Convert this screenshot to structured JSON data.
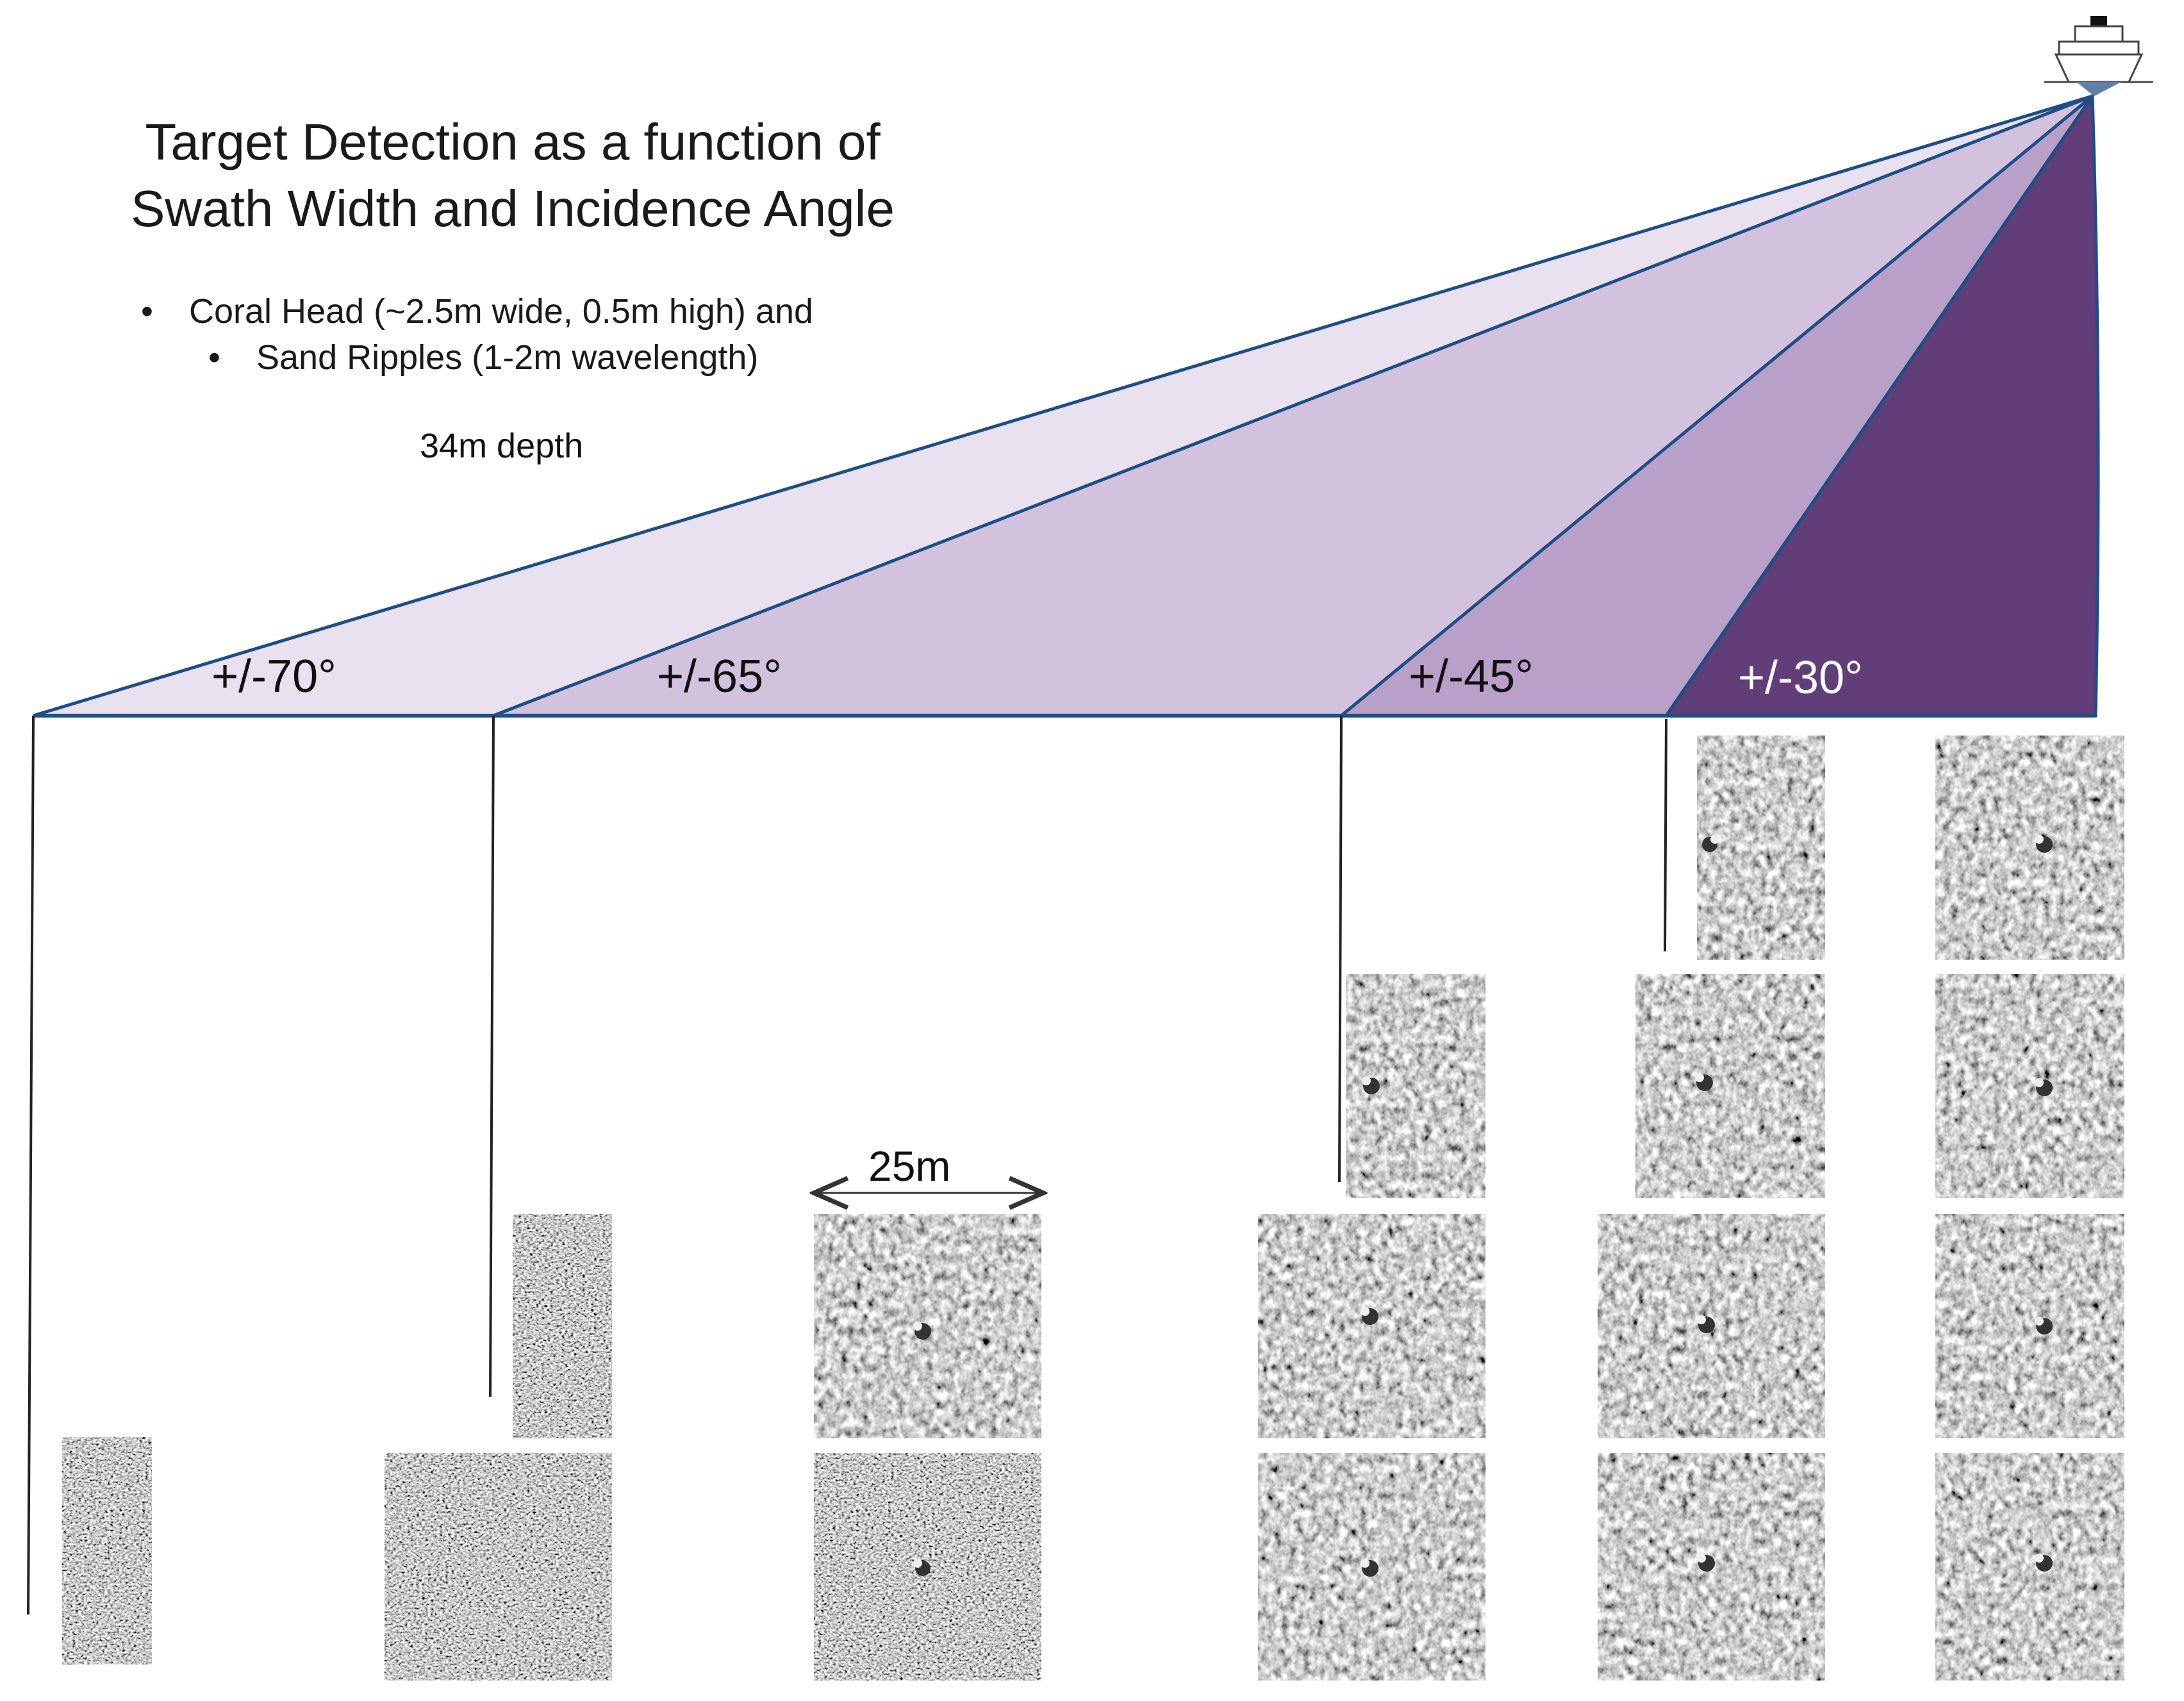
{
  "title": {
    "line1": "Target Detection as a function of",
    "line2": "Swath Width and Incidence Angle"
  },
  "bullets": [
    "Coral Head (~2.5m wide, 0.5m high) and",
    "Sand Ripples (1-2m wavelength)"
  ],
  "depth_label": "34m depth",
  "swath_angles": [
    "+/-70°",
    "+/-65°",
    "+/-45°",
    "+/-30°"
  ],
  "scale_bar_label": "25m",
  "colors": {
    "swath_70": "#e9e1ef",
    "swath_65": "#d2c2dd",
    "swath_45": "#b9a0c9",
    "swath_30": "#613e78",
    "outline": "#1f4e86",
    "tile_base": "#a4a4a4"
  },
  "icons": [
    "ship-icon"
  ]
}
